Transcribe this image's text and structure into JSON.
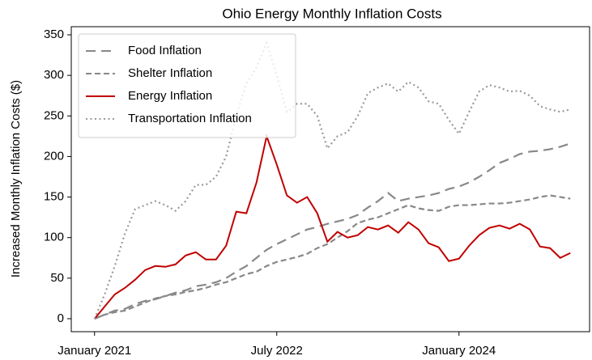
{
  "chart_data": {
    "type": "line",
    "title": "Ohio Energy Monthly Inflation Costs",
    "y_label": "Increased Monthly Inflation Costs ($)",
    "x": [
      "2021-01",
      "2021-02",
      "2021-03",
      "2021-04",
      "2021-05",
      "2021-06",
      "2021-07",
      "2021-08",
      "2021-09",
      "2021-10",
      "2021-11",
      "2021-12",
      "2022-01",
      "2022-02",
      "2022-03",
      "2022-04",
      "2022-05",
      "2022-06",
      "2022-07",
      "2022-08",
      "2022-09",
      "2022-10",
      "2022-11",
      "2022-12",
      "2023-01",
      "2023-02",
      "2023-03",
      "2023-04",
      "2023-05",
      "2023-06",
      "2023-07",
      "2023-08",
      "2023-09",
      "2023-10",
      "2023-11",
      "2023-12",
      "2024-01",
      "2024-02",
      "2024-03",
      "2024-04",
      "2024-05",
      "2024-06",
      "2024-07",
      "2024-08",
      "2024-09",
      "2024-10",
      "2024-11",
      "2024-12"
    ],
    "xlim": [
      "2020-10.7",
      "2025-01.9"
    ],
    "xticks": [
      {
        "value": "2021-01",
        "label": "January 2021"
      },
      {
        "value": "2022-07",
        "label": "July 2022"
      },
      {
        "value": "2024-01",
        "label": "January 2024"
      }
    ],
    "ylim": [
      -16,
      360
    ],
    "yticks": [
      0,
      50,
      100,
      150,
      200,
      250,
      300,
      350
    ],
    "legend": "upper left",
    "series": [
      {
        "name": "Food Inflation",
        "color": "#888888",
        "linestyle": "long-dash",
        "values": [
          0,
          5,
          10,
          12,
          18,
          22,
          24,
          28,
          32,
          35,
          40,
          42,
          45,
          50,
          58,
          65,
          75,
          85,
          92,
          98,
          104,
          110,
          113,
          117,
          120,
          123,
          128,
          137,
          145,
          155,
          145,
          148,
          150,
          152,
          155,
          160,
          163,
          168,
          175,
          183,
          192,
          197,
          203,
          206,
          207,
          209,
          212,
          216
        ]
      },
      {
        "name": "Shelter Inflation",
        "color": "#888888",
        "linestyle": "dash",
        "values": [
          0,
          5,
          8,
          10,
          15,
          20,
          25,
          28,
          30,
          33,
          35,
          38,
          42,
          45,
          50,
          55,
          58,
          65,
          70,
          73,
          76,
          80,
          87,
          92,
          100,
          108,
          118,
          122,
          125,
          130,
          135,
          140,
          136,
          134,
          133,
          138,
          140,
          140,
          141,
          142,
          142,
          143,
          145,
          147,
          150,
          152,
          150,
          148
        ]
      },
      {
        "name": "Energy Inflation",
        "color": "#c00000",
        "linestyle": "solid",
        "values": [
          0,
          15,
          30,
          38,
          48,
          60,
          65,
          64,
          67,
          78,
          82,
          73,
          73,
          90,
          132,
          130,
          168,
          225,
          190,
          152,
          143,
          150,
          130,
          95,
          107,
          100,
          103,
          113,
          110,
          115,
          106,
          119,
          110,
          93,
          88,
          71,
          74,
          90,
          103,
          112,
          115,
          111,
          117,
          110,
          89,
          87,
          75,
          81
        ]
      },
      {
        "name": "Transportation Inflation",
        "color": "#999999",
        "linestyle": "dotted",
        "values": [
          0,
          30,
          65,
          105,
          135,
          140,
          145,
          140,
          133,
          145,
          165,
          165,
          175,
          200,
          250,
          290,
          310,
          340,
          300,
          255,
          265,
          265,
          250,
          210,
          225,
          230,
          250,
          278,
          285,
          290,
          280,
          292,
          285,
          268,
          265,
          245,
          228,
          255,
          280,
          288,
          285,
          280,
          281,
          275,
          262,
          258,
          255,
          258
        ]
      }
    ]
  }
}
